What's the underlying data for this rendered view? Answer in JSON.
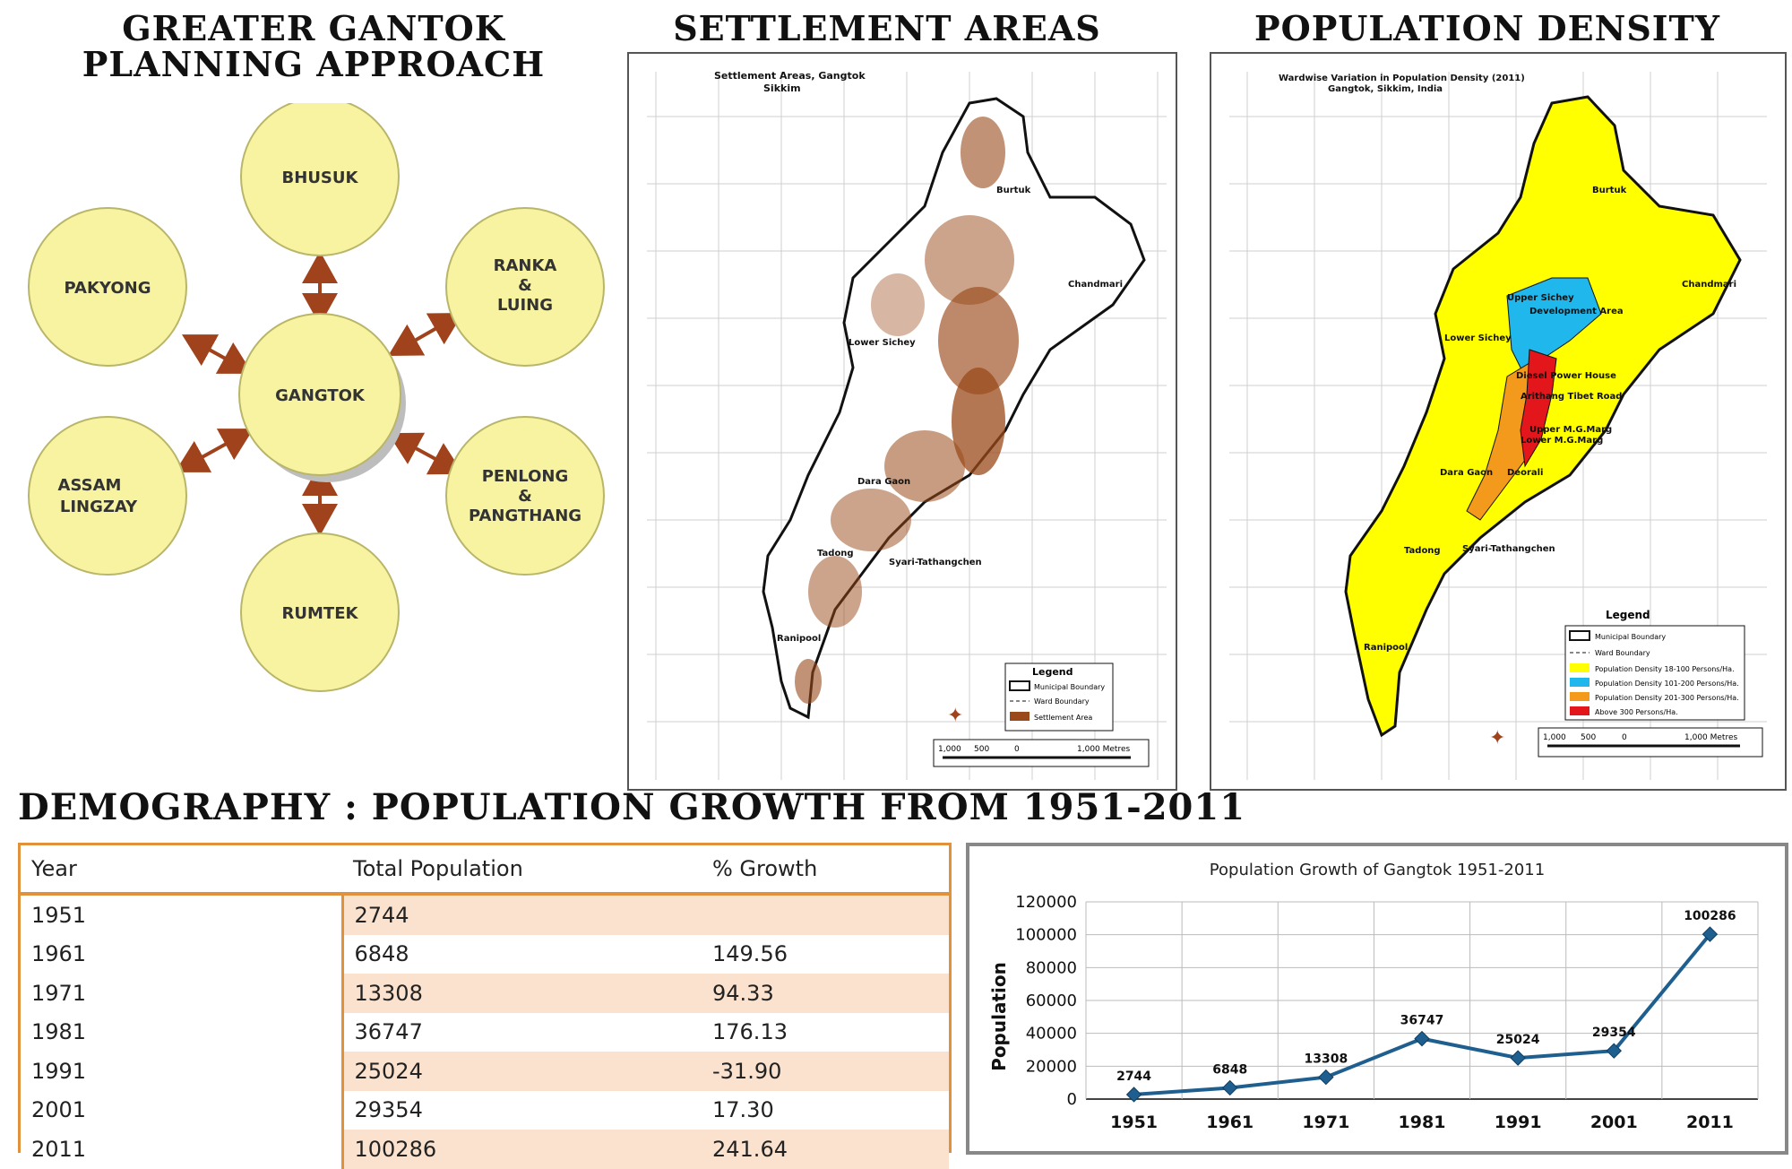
{
  "headings": {
    "planning_line1": "GREATER GANTOK",
    "planning_line2": "PLANNING APPROACH",
    "settlement": "SETTLEMENT AREAS",
    "density": "POPULATION DENSITY",
    "demography": "DEMOGRAPHY : POPULATION GROWTH FROM 1951-2011"
  },
  "planning": {
    "center": "GANGTOK",
    "nodes": {
      "top": "BHUSUK",
      "top_left": "PAKYONG",
      "top_right_l1": "RANKA",
      "top_right_l2": "&",
      "top_right_l3": "LUING",
      "bottom_left_l1": "ASSAM",
      "bottom_left_l2": "LINGZAY",
      "bottom_right_l1": "PENLONG",
      "bottom_right_l2": "&",
      "bottom_right_l3": "PANGTHANG",
      "bottom": "RUMTEK"
    },
    "colors": {
      "node_fill": "#f7f3a1",
      "node_stroke": "#b9b66a",
      "arrow": "#a0421c"
    }
  },
  "settlement_map": {
    "title_l1": "Settlement Areas, Gangtok",
    "title_l2": "Sikkim",
    "places": [
      "Burtuk",
      "Chandmari",
      "Lower Sichey",
      "Dara Gaon",
      "Tadong",
      "Syari-Tathangchen",
      "Ranipool"
    ],
    "legend_title": "Legend",
    "legend_items": [
      "Municipal Boundary",
      "Ward Boundary",
      "Settlement Area"
    ],
    "scale": [
      "1,000",
      "500",
      "0",
      "1,000 Metres"
    ],
    "colors": {
      "settlement": "#9a4a1a"
    }
  },
  "density_map": {
    "title_l1": "Wardwise Variation in Population Density (2011)",
    "title_l2": "Gangtok, Sikkim, India",
    "places": [
      "Burtuk",
      "Chandmari",
      "Upper Sichey",
      "Development Area",
      "Lower Sichey",
      "Diesel Power House",
      "Arithang Tibet Road",
      "Upper M.G.Marg",
      "Lower M.G.Marg",
      "Deorali",
      "Dara Gaon",
      "Tadong",
      "Syari-Tathangchen",
      "Ranipool"
    ],
    "legend_title": "Legend",
    "legend_items": [
      "Municipal Boundary",
      "Ward Boundary",
      "Population Density 18-100 Persons/Ha.",
      "Population Density 101-200 Persons/Ha.",
      "Population Density 201-300 Persons/Ha.",
      "Above 300 Persons/Ha."
    ],
    "scale": [
      "1,000",
      "500",
      "0",
      "1,000 Metres"
    ],
    "colors": {
      "low": "#ffff00",
      "mid": "#1fb7ec",
      "high": "#f39a1c",
      "top": "#e3161b"
    }
  },
  "table": {
    "headers": [
      "Year",
      "Total Population",
      "% Growth"
    ],
    "rows": [
      [
        "1951",
        "2744",
        ""
      ],
      [
        "1961",
        "6848",
        "149.56"
      ],
      [
        "1971",
        "13308",
        "94.33"
      ],
      [
        "1981",
        "36747",
        "176.13"
      ],
      [
        "1991",
        "25024",
        "-31.90"
      ],
      [
        "2001",
        "29354",
        "17.30"
      ],
      [
        "2011",
        "100286",
        "241.64"
      ]
    ]
  },
  "chart_data": {
    "type": "line",
    "title": "Population Growth of Gangtok 1951-2011",
    "xlabel": "",
    "ylabel": "Population",
    "categories": [
      "1951",
      "1961",
      "1971",
      "1981",
      "1991",
      "2001",
      "2011"
    ],
    "values": [
      2744,
      6848,
      13308,
      36747,
      25024,
      29354,
      100286
    ],
    "yticks": [
      0,
      20000,
      40000,
      60000,
      80000,
      100000,
      120000
    ],
    "ylim": [
      0,
      120000
    ],
    "grid": true,
    "color": "#1f5f8f"
  }
}
